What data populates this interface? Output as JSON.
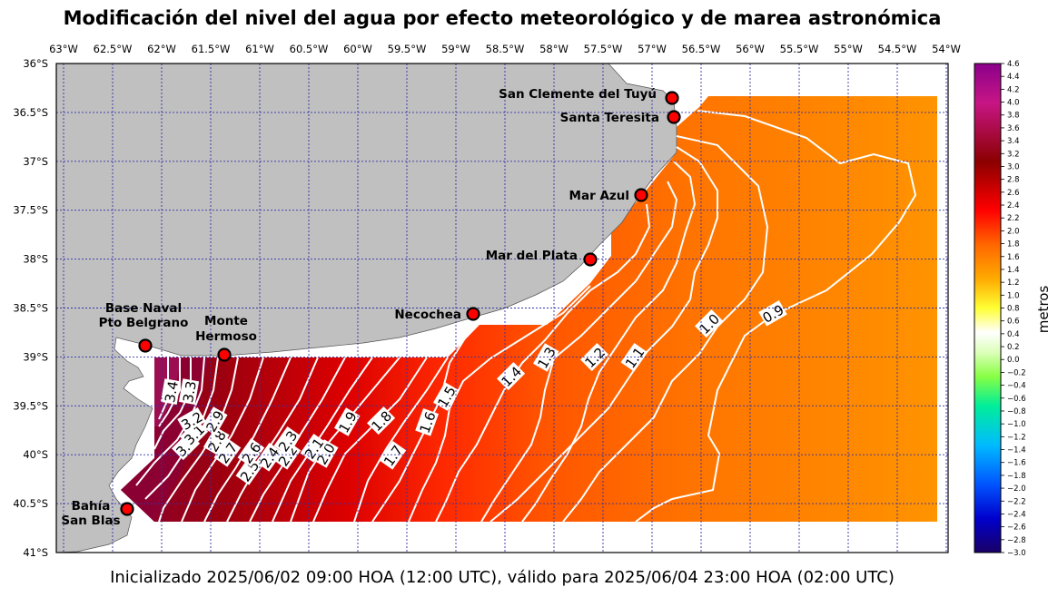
{
  "title": "Modificación del nivel del agua por efecto meteorológico y de marea astronómica",
  "footer": "Inicializado 2025/06/02 09:00 HOA (12:00 UTC), válido para 2025/06/04 23:00 HOA (02:00 UTC)",
  "lon_ticks": [
    "63°W",
    "62.5°W",
    "62°W",
    "61.5°W",
    "61°W",
    "60.5°W",
    "60°W",
    "59.5°W",
    "59°W",
    "58.5°W",
    "58°W",
    "57.5°W",
    "57°W",
    "56.5°W",
    "56°W",
    "55.5°W",
    "55°W",
    "54.5°W",
    "54°W"
  ],
  "lat_ticks": [
    "36°S",
    "36.5°S",
    "37°S",
    "37.5°S",
    "38°S",
    "38.5°S",
    "39°S",
    "39.5°S",
    "40°S",
    "40.5°S",
    "41°S"
  ],
  "colorbar": {
    "label": "metros",
    "range": [
      -3.0,
      4.6
    ],
    "ticks": [
      "4.6",
      "4.4",
      "4.2",
      "4.0",
      "3.8",
      "3.6",
      "3.4",
      "3.2",
      "3.0",
      "2.8",
      "2.6",
      "2.4",
      "2.2",
      "2.0",
      "1.8",
      "1.6",
      "1.4",
      "1.2",
      "1.0",
      "0.8",
      "0.6",
      "0.4",
      "0.2",
      "0.0",
      "−0.2",
      "−0.4",
      "−0.6",
      "−0.8",
      "−1.0",
      "−1.2",
      "−1.4",
      "−1.6",
      "−1.8",
      "−2.0",
      "−2.2",
      "−2.4",
      "−2.6",
      "−2.8",
      "−3.0"
    ],
    "colors": [
      "#1a0066",
      "#0000cc",
      "#0055ff",
      "#00bbff",
      "#00ee99",
      "#88ff44",
      "#ddffbb",
      "#ffffff",
      "#ffff33",
      "#ffbb00",
      "#ff7700",
      "#ff2200",
      "#cc0000",
      "#8b0000",
      "#c71585",
      "#8b008b"
    ]
  },
  "stations": [
    {
      "name": "San Clemente del Tuyú"
    },
    {
      "name": "Santa Teresita"
    },
    {
      "name": "Mar Azul"
    },
    {
      "name": "Mar del Plata"
    },
    {
      "name": "Necochea"
    },
    {
      "name": "Monte Hermoso",
      "line1": "Monte",
      "line2": "Hermoso"
    },
    {
      "name": "Base Naval Pto Belgrano",
      "line1": "Base Naval",
      "line2": "Pto Belgrano"
    },
    {
      "name": "Bahía San Blas",
      "line1": "Bahía",
      "line2": "San Blas"
    }
  ],
  "contour_labels": [
    "0.9",
    "1.0",
    "1.1",
    "1.2",
    "1.3",
    "1.4",
    "1.5",
    "1.6",
    "1.7",
    "1.8",
    "1.9",
    "2.0",
    "2.1",
    "2.2",
    "2.3",
    "2.4",
    "2.5",
    "2.6",
    "2.7",
    "2.8",
    "2.9",
    "3.0",
    "3.1",
    "3.2",
    "3.3",
    "3.4"
  ]
}
